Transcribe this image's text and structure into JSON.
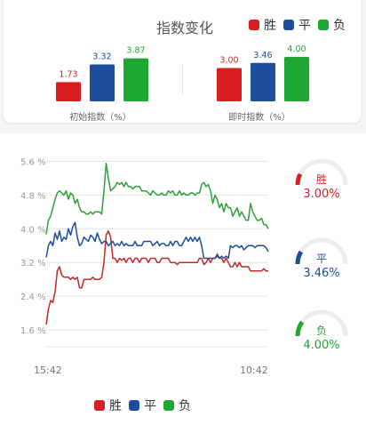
{
  "header": {
    "title": "指数变化"
  },
  "legend": [
    {
      "name": "胜",
      "color": "#d81e1e"
    },
    {
      "name": "平",
      "color": "#1d4e9b"
    },
    {
      "name": "负",
      "color": "#1ea832"
    }
  ],
  "chart_data": [
    {
      "type": "bar",
      "xlabel": "初始指数（%）",
      "categories": [
        "胜",
        "平",
        "负"
      ],
      "values": [
        1.73,
        3.32,
        3.87
      ],
      "value_labels": [
        "1.73",
        "3.32",
        "3.87"
      ],
      "colors": [
        "#d81e1e",
        "#1d4e9b",
        "#1ea832"
      ]
    },
    {
      "type": "bar",
      "xlabel": "即时指数（%）",
      "categories": [
        "胜",
        "平",
        "负"
      ],
      "values": [
        3.0,
        3.46,
        4.0
      ],
      "value_labels": [
        "3.00",
        "3.46",
        "4.00"
      ],
      "colors": [
        "#d81e1e",
        "#1d4e9b",
        "#1ea832"
      ]
    },
    {
      "type": "line",
      "ylim": [
        1.2,
        5.8
      ],
      "y_ticks": [
        1.6,
        2.4,
        3.2,
        4.0,
        4.8,
        5.6
      ],
      "y_tick_labels": [
        "1.6 %",
        "2.4 %",
        "3.2 %",
        "4.0 %",
        "4.8 %",
        "5.6 %"
      ],
      "x_tick_labels": [
        "15:42",
        "10:42"
      ],
      "grid": true,
      "series": [
        {
          "name": "胜",
          "color": "#c0282a",
          "x": [
            0,
            1,
            2,
            3,
            4,
            5,
            6,
            7,
            8,
            9,
            10,
            11,
            12,
            13,
            14,
            15,
            16,
            17,
            18,
            19,
            20,
            21,
            22,
            23,
            24,
            25,
            26,
            27,
            28,
            29,
            30,
            31,
            32,
            33,
            34,
            35,
            36,
            37,
            38,
            39,
            40,
            41,
            42,
            43,
            44,
            45,
            46,
            47,
            48,
            49,
            50,
            51,
            52,
            53,
            54,
            55,
            56,
            57,
            58,
            59,
            60,
            61,
            62,
            63,
            64,
            65,
            66,
            67,
            68,
            69,
            70,
            71,
            72,
            73,
            74,
            75,
            76,
            77,
            78,
            79,
            80,
            81,
            82,
            83,
            84,
            85,
            86,
            87,
            88,
            89,
            90,
            91,
            92,
            93,
            94,
            95,
            96,
            97,
            98,
            99,
            100
          ],
          "values": [
            1.73,
            2.1,
            2.3,
            2.25,
            2.5,
            3.0,
            3.1,
            2.9,
            2.85,
            2.85,
            2.85,
            2.8,
            2.85,
            2.8,
            2.85,
            2.6,
            2.6,
            2.8,
            2.8,
            2.8,
            2.8,
            2.85,
            2.8,
            2.8,
            2.8,
            2.85,
            3.2,
            3.85,
            3.95,
            3.8,
            3.3,
            3.3,
            3.2,
            3.3,
            3.25,
            3.3,
            3.2,
            3.3,
            3.3,
            3.2,
            3.3,
            3.3,
            3.2,
            3.3,
            3.3,
            3.3,
            3.2,
            3.3,
            3.3,
            3.3,
            3.2,
            3.2,
            3.3,
            3.3,
            3.3,
            3.3,
            3.2,
            3.2,
            3.2,
            3.15,
            3.2,
            3.2,
            3.2,
            3.2,
            3.2,
            3.2,
            3.2,
            3.2,
            3.2,
            3.3,
            3.3,
            3.15,
            3.2,
            3.3,
            3.2,
            3.3,
            3.3,
            3.4,
            3.3,
            3.3,
            3.2,
            3.3,
            3.2,
            3.1,
            3.1,
            3.2,
            3.1,
            3.2,
            3.1,
            3.1,
            3.1,
            3.1,
            3.0,
            3.0,
            3.0,
            3.0,
            3.0,
            3.0,
            3.05,
            3.0,
            3.0
          ]
        },
        {
          "name": "平",
          "color": "#1d4e9b",
          "x": [
            0,
            1,
            2,
            3,
            4,
            5,
            6,
            7,
            8,
            9,
            10,
            11,
            12,
            13,
            14,
            15,
            16,
            17,
            18,
            19,
            20,
            21,
            22,
            23,
            24,
            25,
            26,
            27,
            28,
            29,
            30,
            31,
            32,
            33,
            34,
            35,
            36,
            37,
            38,
            39,
            40,
            41,
            42,
            43,
            44,
            45,
            46,
            47,
            48,
            49,
            50,
            51,
            52,
            53,
            54,
            55,
            56,
            57,
            58,
            59,
            60,
            61,
            62,
            63,
            64,
            65,
            66,
            67,
            68,
            69,
            70,
            71,
            72,
            73,
            74,
            75,
            76,
            77,
            78,
            79,
            80,
            81,
            82,
            83,
            84,
            85,
            86,
            87,
            88,
            89,
            90,
            91,
            92,
            93,
            94,
            95,
            96,
            97,
            98,
            99,
            100
          ],
          "values": [
            3.32,
            3.6,
            3.7,
            3.6,
            3.9,
            3.75,
            3.95,
            3.7,
            3.8,
            3.75,
            4.0,
            3.85,
            4.05,
            4.15,
            3.8,
            3.6,
            3.65,
            3.8,
            3.75,
            3.7,
            3.85,
            3.8,
            3.7,
            3.9,
            3.75,
            3.65,
            3.7,
            3.7,
            3.6,
            3.65,
            3.7,
            3.6,
            3.65,
            3.6,
            3.7,
            3.6,
            3.65,
            3.6,
            3.6,
            3.6,
            3.7,
            3.6,
            3.6,
            3.6,
            3.7,
            3.7,
            3.7,
            3.7,
            3.6,
            3.65,
            3.7,
            3.6,
            3.65,
            3.65,
            3.6,
            3.6,
            3.7,
            3.6,
            3.7,
            3.7,
            3.6,
            3.6,
            3.7,
            3.8,
            3.7,
            3.8,
            3.7,
            3.8,
            3.7,
            3.8,
            3.6,
            3.3,
            3.3,
            3.3,
            3.3,
            3.3,
            3.3,
            3.35,
            3.3,
            3.35,
            3.3,
            3.35,
            3.3,
            3.6,
            3.55,
            3.6,
            3.6,
            3.55,
            3.6,
            3.5,
            3.55,
            3.6,
            3.6,
            3.6,
            3.55,
            3.6,
            3.6,
            3.6,
            3.6,
            3.55,
            3.46
          ]
        },
        {
          "name": "负",
          "color": "#2ea13a",
          "x": [
            0,
            1,
            2,
            3,
            4,
            5,
            6,
            7,
            8,
            9,
            10,
            11,
            12,
            13,
            14,
            15,
            16,
            17,
            18,
            19,
            20,
            21,
            22,
            23,
            24,
            25,
            26,
            27,
            28,
            29,
            30,
            31,
            32,
            33,
            34,
            35,
            36,
            37,
            38,
            39,
            40,
            41,
            42,
            43,
            44,
            45,
            46,
            47,
            48,
            49,
            50,
            51,
            52,
            53,
            54,
            55,
            56,
            57,
            58,
            59,
            60,
            61,
            62,
            63,
            64,
            65,
            66,
            67,
            68,
            69,
            70,
            71,
            72,
            73,
            74,
            75,
            76,
            77,
            78,
            79,
            80,
            81,
            82,
            83,
            84,
            85,
            86,
            87,
            88,
            89,
            90,
            91,
            92,
            93,
            94,
            95,
            96,
            97,
            98,
            99,
            100
          ],
          "values": [
            3.87,
            4.2,
            4.3,
            4.5,
            4.7,
            4.85,
            4.9,
            4.85,
            4.8,
            4.9,
            4.7,
            4.85,
            4.8,
            4.6,
            4.7,
            4.5,
            4.4,
            4.4,
            4.35,
            4.35,
            4.4,
            4.35,
            4.4,
            4.4,
            4.4,
            4.35,
            4.9,
            5.55,
            5.2,
            4.9,
            4.95,
            5.0,
            5.1,
            5.05,
            5.1,
            5.0,
            5.1,
            5.0,
            5.0,
            4.95,
            5.0,
            5.0,
            5.0,
            4.9,
            4.9,
            4.9,
            4.85,
            4.8,
            4.9,
            4.85,
            4.8,
            4.8,
            4.85,
            4.8,
            4.8,
            4.9,
            4.85,
            4.9,
            4.8,
            4.8,
            4.9,
            4.8,
            4.85,
            4.8,
            4.8,
            4.85,
            4.85,
            4.8,
            4.85,
            4.85,
            5.05,
            5.1,
            5.0,
            5.05,
            4.9,
            4.6,
            4.8,
            4.7,
            4.5,
            4.6,
            4.4,
            4.6,
            4.5,
            4.5,
            4.3,
            4.4,
            4.5,
            4.3,
            4.4,
            4.3,
            4.2,
            4.2,
            4.6,
            4.4,
            4.3,
            4.2,
            4.2,
            4.25,
            4.1,
            4.1,
            4.0
          ]
        }
      ]
    }
  ],
  "gauges": [
    {
      "label": "胜",
      "value_text": "3.00%",
      "value": 3.0,
      "color": "#d81e1e"
    },
    {
      "label": "平",
      "value_text": "3.46%",
      "value": 3.46,
      "color": "#1d4e9b"
    },
    {
      "label": "负",
      "value_text": "4.00%",
      "value": 4.0,
      "color": "#1ea832"
    }
  ]
}
